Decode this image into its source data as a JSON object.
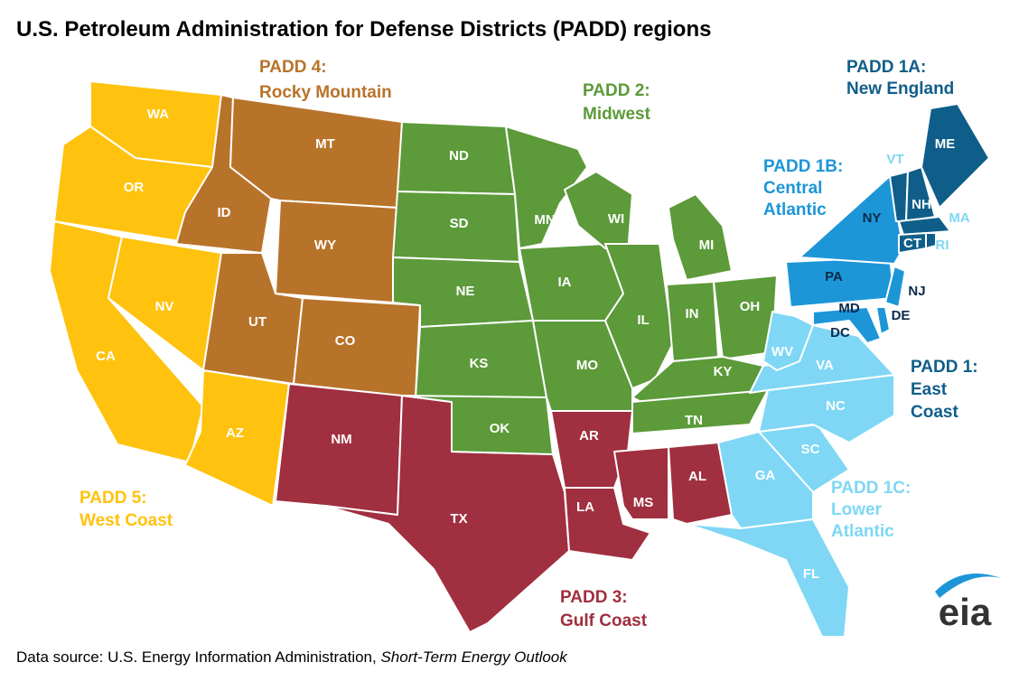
{
  "title": "U.S. Petroleum Administration for Defense Districts (PADD) regions",
  "regions": [
    {
      "lines": [
        "PADD 4:",
        "Rocky Mountain"
      ]
    },
    {
      "lines": [
        "PADD 2:",
        "Midwest"
      ]
    },
    {
      "lines": [
        "PADD 1A:",
        "New England"
      ]
    },
    {
      "lines": [
        "PADD 1B:",
        "Central",
        "Atlantic"
      ]
    },
    {
      "lines": [
        "PADD 1:",
        "East",
        "Coast"
      ]
    },
    {
      "lines": [
        "PADD 1C:",
        "Lower",
        "Atlantic"
      ]
    },
    {
      "lines": [
        "PADD 5:",
        "West Coast"
      ]
    },
    {
      "lines": [
        "PADD 3:",
        "Gulf Coast"
      ]
    }
  ],
  "states": [
    "WA",
    "OR",
    "CA",
    "NV",
    "AZ",
    "ID",
    "MT",
    "WY",
    "UT",
    "CO",
    "NM",
    "TX",
    "ND",
    "SD",
    "NE",
    "KS",
    "OK",
    "MN",
    "IA",
    "MO",
    "WI",
    "IL",
    "MI",
    "IN",
    "OH",
    "KY",
    "TN",
    "AR",
    "LA",
    "MS",
    "AL",
    "GA",
    "SC",
    "NC",
    "VA",
    "WV",
    "FL",
    "PA",
    "NY",
    "NJ",
    "DE",
    "MD",
    "DC",
    "VT",
    "NH",
    "ME",
    "MA",
    "CT",
    "RI"
  ],
  "source": {
    "text": "Data source: U.S. Energy Information Administration, ",
    "italic": "Short-Term Energy Outlook"
  },
  "logo": "eia"
}
